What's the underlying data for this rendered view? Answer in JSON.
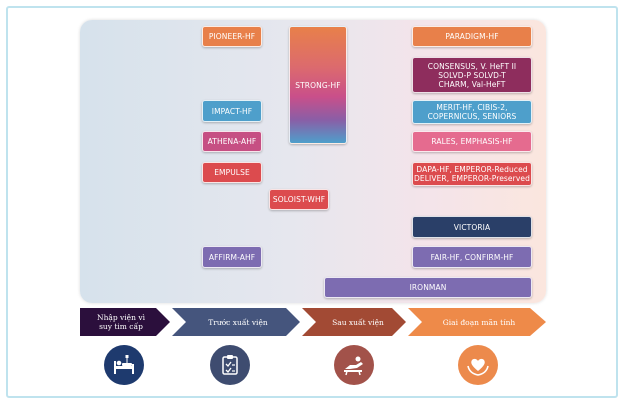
{
  "trials": {
    "pioneer": "PIONEER-HF",
    "impact": "IMPACT-HF",
    "athena": "ATHENA-AHF",
    "empulse": "EMPULSE",
    "soloist": "SOLOIST-WHF",
    "affirm": "AFFIRM-AHF",
    "strong": "STRONG-HF",
    "paradigm": "PARADIGM-HF",
    "consensus": "CONSENSUS, V. HeFT II\nSOLVD-P SOLVD-T\nCHARM, Val-HeFT",
    "merit": "MERIT-HF, CIBIS-2,\nCOPERNICUS, SENIORS",
    "rales": "RALES, EMPHASIS-HF",
    "dapa": "DAPA-HF, EMPEROR-Reduced\nDELIVER, EMPEROR-Preserved",
    "victoria": "VICTORIA",
    "fair": "FAIR-HF, CONFIRM-HF",
    "ironman": "IRONMAN"
  },
  "stages": {
    "admission": "Nhập viện vì\nsuy tim cấp",
    "pre_discharge": "Trước xuất viện",
    "post_discharge": "Sau xuất viện",
    "chronic": "Giai đoạn mãn tính"
  },
  "icons": {
    "admission": "hospital-bed-icon",
    "pre_discharge": "clipboard-icon",
    "post_discharge": "recliner-icon",
    "chronic": "heart-hands-icon"
  },
  "colors": {
    "orange": "#e8804a",
    "magenta": "#8e2d5d",
    "blue": "#4e9fcb",
    "pink": "#e56b8f",
    "red": "#dc4b4e",
    "navy": "#2a3f68",
    "purple": "#7d6cb1"
  }
}
